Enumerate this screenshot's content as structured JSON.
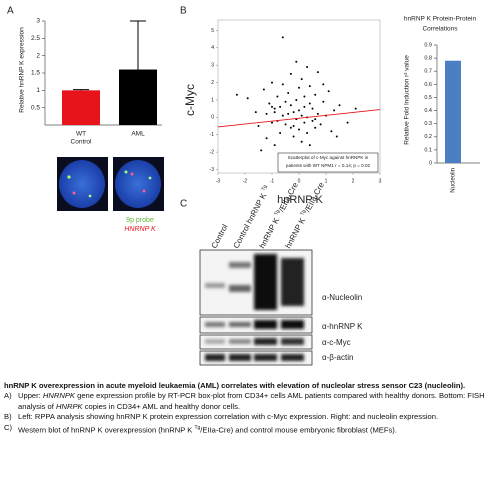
{
  "panels": [
    "A",
    "B",
    "C"
  ],
  "chart_data": [
    {
      "type": "bar",
      "ylabel": "Relative hnRNP K expression",
      "categories": [
        [
          "WT",
          "Control"
        ],
        [
          "AML"
        ]
      ],
      "values": [
        1.0,
        1.6
      ],
      "errors": [
        0.02,
        1.4
      ],
      "colors": [
        "#e8141c",
        "#000000"
      ],
      "ylim": [
        0,
        3
      ],
      "yticks": [
        0.5,
        1,
        1.5,
        2,
        2.5,
        3
      ]
    },
    {
      "type": "scatter",
      "xlabel": "hnRNP K",
      "ylabel": "c-Myc",
      "x": [
        -1.9,
        -1.6,
        -1.5,
        -1.3,
        -1.2,
        -1.2,
        -1.1,
        -1.0,
        -1.0,
        -0.9,
        -0.9,
        -0.8,
        -0.8,
        -0.7,
        -0.7,
        -0.6,
        -0.6,
        -0.5,
        -0.5,
        -0.5,
        -0.4,
        -0.4,
        -0.3,
        -0.3,
        -0.3,
        -0.2,
        -0.2,
        -0.1,
        -0.1,
        -0.1,
        0,
        0,
        0,
        0.1,
        0.1,
        0.1,
        0.2,
        0.2,
        0.2,
        0.3,
        0.3,
        0.4,
        0.4,
        0.5,
        0.5,
        0.6,
        0.6,
        0.7,
        0.7,
        0.8,
        0.9,
        1.0,
        1.1,
        1.2,
        1.3,
        1.5,
        1.8,
        2.1,
        -2.3,
        -1.4,
        -0.6,
        0.0,
        0.4,
        0.9,
        -0.9,
        -0.2,
        0.3,
        1.4,
        -1.0,
        0.6
      ],
      "y": [
        1.1,
        0.3,
        -0.5,
        1.6,
        0.2,
        -1.2,
        0.8,
        -0.3,
        2.0,
        0.5,
        -1.6,
        1.2,
        -0.2,
        0.6,
        -0.9,
        1.9,
        0.1,
        0.9,
        -0.4,
        -2.1,
        1.4,
        0.2,
        0.7,
        -0.6,
        2.5,
        0.3,
        -1.1,
        1.0,
        -0.1,
        3.2,
        0.4,
        -0.7,
        1.7,
        0.1,
        -1.4,
        2.2,
        0.6,
        -0.3,
        1.2,
        0.0,
        -0.9,
        0.8,
        1.8,
        -0.2,
        0.5,
        1.3,
        -0.6,
        0.2,
        2.6,
        -0.4,
        0.9,
        0.1,
        1.5,
        -0.8,
        0.4,
        0.7,
        -0.3,
        0.5,
        1.3,
        -1.9,
        4.6,
        -2.7,
        -1.6,
        1.9,
        0.3,
        -0.5,
        2.9,
        -1.1,
        0.6,
        -0.1
      ],
      "color": "#000000",
      "fit": {
        "x": [
          -3,
          3
        ],
        "y": [
          -0.55,
          0.45
        ],
        "color": "#e8141c"
      },
      "annotation": [
        "Scatterplot of c-Myc against hnRNPK  in",
        "patients with WT NPM1  r = 0.14;  p = 0.02"
      ],
      "xlim": [
        -3,
        3
      ],
      "xticks": [
        -3,
        -2,
        -1,
        0,
        1,
        2,
        3
      ],
      "ylim": [
        -3.2,
        5.6
      ],
      "yticks": [
        -3,
        -2,
        -1,
        0,
        1,
        2,
        3,
        4,
        5
      ]
    },
    {
      "type": "bar",
      "title": [
        "hnRNP K Protein-Protein",
        "Correlations"
      ],
      "ylabel": "Relative Fold Induction r² value",
      "categories": [
        "Nucleolin"
      ],
      "values": [
        0.78
      ],
      "color": "#4a7fc1",
      "ylim": [
        0,
        0.9
      ],
      "yticks": [
        0,
        0.1,
        0.2,
        0.3,
        0.4,
        0.5,
        0.6,
        0.7,
        0.8,
        0.9
      ]
    }
  ],
  "fish": {
    "labels": [
      "9p probe",
      "HNRNP K"
    ]
  },
  "blot": {
    "lanes": [
      {
        "text": "Control"
      },
      {
        "text": "Control hnRNP K ",
        "sup": "Tg"
      },
      {
        "text": "hnRNP K ",
        "sup": "Tg",
        "post": "/EIIa-Cre"
      },
      {
        "text": "hnRNP K ",
        "sup": "Tg",
        "post": "/EIIa-Cre"
      }
    ],
    "rows": [
      "α-Nucleolin",
      "α-hnRNP K",
      "α-c-Myc",
      "α-β-actin"
    ]
  },
  "caption": {
    "title": "hnRNP K overexpression in acute myeloid leukaemia (AML) correlates with elevation of nucleolar stress sensor C23 (nucleolin).",
    "items": [
      {
        "letter": "A)",
        "parts": [
          {
            "text": "Upper: "
          },
          {
            "text": "HNRNPK",
            "style": "italic"
          },
          {
            "text": " gene expression profile by RT-PCR box-plot from CD34+ cells AML patients compared with healthy donors. Bottom: FISH analysis of "
          },
          {
            "text": "HNRPK",
            "style": "italic"
          },
          {
            "text": " copies in CD34+  AML and healthy donor cells."
          }
        ]
      },
      {
        "letter": "B)",
        "parts": [
          {
            "text": "Left: RPPA analysis showing hnRNP K protein expression correlation with c-Myc expression. Right: and nucleolin expression."
          }
        ]
      },
      {
        "letter": "C)",
        "parts": [
          {
            "text": "Western blot of hnRNP K overexpression (hnRNP K "
          },
          {
            "text": "Tg",
            "style": "sup"
          },
          {
            "text": "/EIIa-Cre) and control mouse embryonic fibroblast (MEFs)."
          }
        ]
      }
    ]
  }
}
